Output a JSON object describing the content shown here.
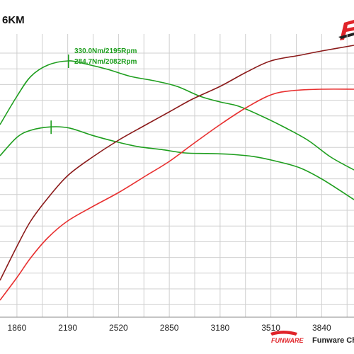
{
  "chart_data": {
    "type": "line",
    "title": "6KM",
    "xlabel": "",
    "ylabel": "",
    "x_ticks": [
      "1860",
      "2190",
      "2520",
      "2850",
      "3180",
      "3510",
      "3840"
    ],
    "xlim": [
      1750,
      4050
    ],
    "ylim": [
      0,
      100
    ],
    "grid": true,
    "series": [
      {
        "color": "#1e9e1e",
        "x": [
          1750,
          1860,
          1950,
          2060,
          2195,
          2300,
          2450,
          2600,
          2750,
          2900,
          3050,
          3180,
          3300,
          3450,
          3600,
          3750,
          3900,
          4050
        ],
        "y": [
          68,
          78,
          85,
          89,
          90.5,
          89.5,
          87.5,
          85,
          83.5,
          81.5,
          78,
          76,
          74.5,
          71,
          67,
          62.5,
          56.5,
          52
        ]
      },
      {
        "color": "#1e9e1e",
        "x": [
          1750,
          1860,
          1950,
          2082,
          2200,
          2350,
          2500,
          2650,
          2800,
          2950,
          3100,
          3250,
          3400,
          3550,
          3700,
          3850,
          4050
        ],
        "y": [
          57,
          63.5,
          66,
          67.2,
          66.8,
          64.2,
          62,
          60.2,
          59.2,
          58,
          57.8,
          57.5,
          56.7,
          55,
          52.7,
          48.5,
          41.5
        ]
      },
      {
        "color": "#8b1a1a",
        "x": [
          1750,
          1860,
          1950,
          2060,
          2190,
          2350,
          2520,
          2700,
          2850,
          3000,
          3180,
          3350,
          3510,
          3700,
          3840,
          4050
        ],
        "y": [
          13,
          25,
          34,
          42,
          50,
          56.5,
          62.5,
          68,
          72.5,
          77,
          81.5,
          86.5,
          90.5,
          92.5,
          94,
          96
        ]
      },
      {
        "color": "#e83030",
        "x": [
          1750,
          1860,
          1950,
          2060,
          2190,
          2350,
          2520,
          2700,
          2850,
          3000,
          3180,
          3350,
          3510,
          3650,
          3840,
          4050
        ],
        "y": [
          6,
          14,
          21,
          28,
          34,
          39,
          44,
          50,
          55,
          61,
          68,
          74,
          78.5,
          80,
          80.5,
          80.5
        ]
      }
    ],
    "annotations": [
      {
        "text": "330.0Nm/2195Rpm",
        "x": 2195,
        "y": 90.5,
        "color": "#1e9e1e"
      },
      {
        "text": "284.7Nm/2082Rpm",
        "x": 2082,
        "y": 67.2,
        "color": "#1e9e1e"
      }
    ]
  },
  "branding": {
    "logo_tagline": "FUNWARE",
    "footer_text": "Funware Chi"
  }
}
